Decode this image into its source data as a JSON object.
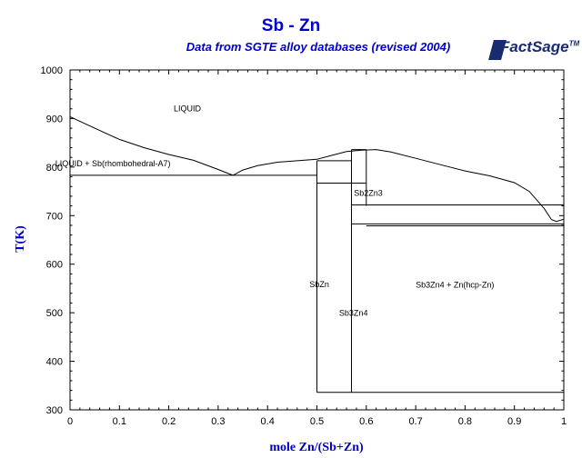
{
  "header": {
    "title": "Sb - Zn",
    "subtitle": "Data from SGTE alloy databases (revised 2004)",
    "logo_text": "FactSage",
    "logo_tm": "TM"
  },
  "chart_data": {
    "type": "line",
    "xlabel": "mole Zn/(Sb+Zn)",
    "ylabel": "T(K)",
    "xlim": [
      0,
      1
    ],
    "ylim": [
      300,
      1000
    ],
    "xticks": [
      "0",
      "0.1",
      "0.2",
      "0.3",
      "0.4",
      "0.5",
      "0.6",
      "0.7",
      "0.8",
      "0.9",
      "1"
    ],
    "yticks": [
      "300",
      "400",
      "500",
      "600",
      "700",
      "800",
      "900",
      "1000"
    ],
    "grid": false,
    "lines": [
      {
        "id": "liquidus-sb-side",
        "points": [
          [
            0,
            903.8
          ],
          [
            0.05,
            880
          ],
          [
            0.1,
            857
          ],
          [
            0.15,
            840
          ],
          [
            0.2,
            826
          ],
          [
            0.25,
            814
          ],
          [
            0.3,
            795
          ],
          [
            0.33,
            783
          ]
        ]
      },
      {
        "id": "liquidus-mid",
        "points": [
          [
            0.33,
            783
          ],
          [
            0.35,
            794
          ],
          [
            0.38,
            803
          ],
          [
            0.42,
            810
          ],
          [
            0.46,
            813
          ],
          [
            0.5,
            816
          ],
          [
            0.53,
            824
          ],
          [
            0.56,
            832
          ],
          [
            0.59,
            835
          ],
          [
            0.62,
            836
          ],
          [
            0.65,
            831
          ],
          [
            0.7,
            818
          ],
          [
            0.75,
            805
          ],
          [
            0.8,
            792
          ],
          [
            0.85,
            782
          ],
          [
            0.9,
            768
          ],
          [
            0.93,
            750
          ],
          [
            0.96,
            715
          ],
          [
            0.975,
            692
          ]
        ]
      },
      {
        "id": "liquidus-zn-side",
        "points": [
          [
            0.975,
            692
          ],
          [
            0.985,
            688
          ],
          [
            1,
            692.7
          ]
        ]
      },
      {
        "id": "eutectic-sb-sbzn",
        "points": [
          [
            0,
            783
          ],
          [
            0.5,
            783
          ]
        ]
      },
      {
        "id": "sbzn-left",
        "points": [
          [
            0.5,
            336
          ],
          [
            0.5,
            813
          ]
        ]
      },
      {
        "id": "sbzn-top",
        "points": [
          [
            0.5,
            813
          ],
          [
            0.57,
            813
          ]
        ]
      },
      {
        "id": "sbzn-lower-plateau",
        "points": [
          [
            0.5,
            767
          ],
          [
            0.6,
            767
          ]
        ]
      },
      {
        "id": "sb3zn4-left",
        "points": [
          [
            0.57,
            336
          ],
          [
            0.57,
            836
          ]
        ]
      },
      {
        "id": "sb3zn4-right",
        "points": [
          [
            0.6,
            720
          ],
          [
            0.6,
            836
          ]
        ]
      },
      {
        "id": "sb3zn4-top",
        "points": [
          [
            0.57,
            836
          ],
          [
            0.6,
            836
          ]
        ]
      },
      {
        "id": "sb2zn3-top",
        "points": [
          [
            0.57,
            722
          ],
          [
            1,
            722
          ]
        ]
      },
      {
        "id": "sb2zn3-bottom",
        "points": [
          [
            0.57,
            683
          ],
          [
            1,
            683
          ]
        ]
      },
      {
        "id": "eutectic-zn-side",
        "points": [
          [
            0.6,
            679
          ],
          [
            1,
            679
          ]
        ]
      },
      {
        "id": "sb3zn4-left-low",
        "points": [
          [
            0.57,
            683
          ],
          [
            0.57,
            679
          ]
        ]
      },
      {
        "id": "low-temp-line",
        "points": [
          [
            0.5,
            336
          ],
          [
            1,
            336
          ]
        ]
      }
    ],
    "annotations": [
      {
        "text": "LIQUID",
        "x": 0.21,
        "y": 915
      },
      {
        "text": "LIQUID + Sb(rhombohedral-A7)",
        "x": -0.03,
        "y": 802
      },
      {
        "text": "Sb2Zn3",
        "x": 0.575,
        "y": 741
      },
      {
        "text": "SbZn",
        "x": 0.485,
        "y": 553
      },
      {
        "text": "Sb3Zn4",
        "x": 0.545,
        "y": 494
      },
      {
        "text": "Sb3Zn4 + Zn(hcp-Zn)",
        "x": 0.7,
        "y": 552
      }
    ]
  }
}
